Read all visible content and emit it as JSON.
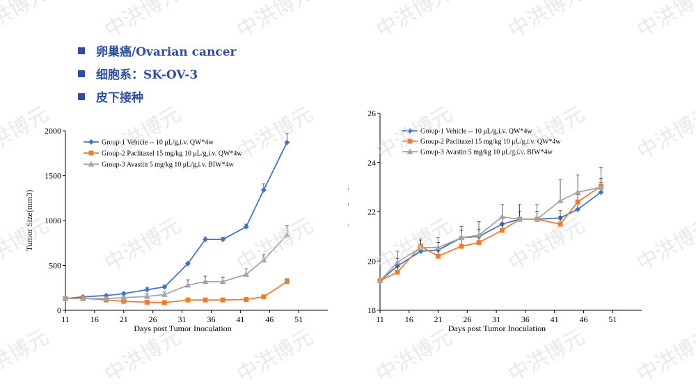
{
  "bullets": [
    "卵巢癌/Ovarian cancer",
    "细胞系：SK-OV-3",
    "皮下接种"
  ],
  "watermark": "中洪博元",
  "colors": {
    "group1": "#4472c4",
    "group2": "#ed7d31",
    "group3": "#a5a5a5",
    "bullet": "#2f4f9a"
  },
  "chart_data": [
    {
      "type": "line",
      "title": "",
      "xlabel": "Days post Tumor Inoculation",
      "ylabel": "Tumor Size(mm3)",
      "xlim": [
        11,
        56
      ],
      "ylim": [
        0,
        2000
      ],
      "xticks": [
        11,
        16,
        21,
        26,
        31,
        36,
        41,
        46,
        51
      ],
      "yticks": [
        0,
        500,
        1000,
        1500,
        2000
      ],
      "legend_position": "top-left",
      "series": [
        {
          "name": "Group-1 Vehicle -- 10 μL/g,i.v. QW*4w",
          "marker": "diamond",
          "x": [
            11,
            14,
            18,
            21,
            25,
            28,
            32,
            35,
            38,
            42,
            45,
            49
          ],
          "y": [
            130,
            150,
            165,
            185,
            230,
            260,
            520,
            790,
            790,
            930,
            1340,
            1870
          ],
          "err": [
            0,
            10,
            10,
            15,
            25,
            20,
            20,
            25,
            20,
            30,
            70,
            100
          ]
        },
        {
          "name": "Group-2 Paclitaxel 15 mg/kg 10 μL/g,i.v. QW*4w",
          "marker": "square",
          "x": [
            11,
            14,
            18,
            21,
            25,
            28,
            32,
            35,
            38,
            42,
            45,
            49
          ],
          "y": [
            130,
            135,
            115,
            100,
            90,
            85,
            115,
            115,
            115,
            120,
            150,
            320
          ],
          "err": [
            0,
            8,
            8,
            8,
            8,
            8,
            10,
            10,
            10,
            10,
            15,
            30
          ]
        },
        {
          "name": "Group-3 Avastin 5 mg/kg 10 μL/g,i.v. BIW*4w",
          "marker": "triangle",
          "x": [
            11,
            14,
            18,
            21,
            25,
            28,
            32,
            35,
            38,
            42,
            45,
            49
          ],
          "y": [
            130,
            130,
            130,
            140,
            155,
            175,
            280,
            320,
            320,
            400,
            560,
            840
          ],
          "err": [
            0,
            10,
            10,
            20,
            30,
            30,
            60,
            60,
            50,
            60,
            60,
            100
          ]
        }
      ]
    },
    {
      "type": "line",
      "title": "",
      "xlabel": "Days post Tumor Inoculation",
      "ylabel": "Body Weight (g)",
      "xlim": [
        11,
        56
      ],
      "ylim": [
        18,
        26
      ],
      "xticks": [
        11,
        16,
        21,
        26,
        31,
        36,
        41,
        46,
        51
      ],
      "yticks": [
        18,
        20,
        22,
        24,
        26
      ],
      "legend_position": "top-left",
      "series": [
        {
          "name": "Group-1 Vehicle -- 10 μL/g,i.v. QW*4w",
          "marker": "diamond",
          "x": [
            11,
            14,
            18,
            21,
            25,
            28,
            32,
            35,
            38,
            42,
            45,
            49
          ],
          "y": [
            19.2,
            19.8,
            20.4,
            20.45,
            20.95,
            21.0,
            21.5,
            21.7,
            21.7,
            21.75,
            22.1,
            22.8
          ],
          "err": [
            0,
            0.3,
            0.3,
            0.3,
            0.3,
            0.3,
            0.3,
            0.3,
            0.3,
            0.3,
            0.3,
            0.4
          ]
        },
        {
          "name": "Group-2 Paclitaxel 15 mg/kg 10 μL/g,i.v. QW*4w",
          "marker": "square",
          "x": [
            11,
            14,
            18,
            21,
            25,
            28,
            32,
            35,
            38,
            42,
            45,
            49
          ],
          "y": [
            19.2,
            19.55,
            20.6,
            20.2,
            20.6,
            20.75,
            21.25,
            21.7,
            21.7,
            21.5,
            22.4,
            23.05
          ],
          "err": [
            0,
            0.3,
            0.3,
            0.3,
            0.3,
            0.3,
            0.3,
            0.3,
            0.3,
            0.3,
            0.3,
            0.3
          ]
        },
        {
          "name": "Group-3 Avastin 5 mg/kg 10 μL/g,i.v. BIW*4w",
          "marker": "triangle",
          "x": [
            11,
            14,
            18,
            21,
            25,
            28,
            32,
            35,
            38,
            42,
            45,
            49
          ],
          "y": [
            19.2,
            19.95,
            20.55,
            20.55,
            20.95,
            21.05,
            21.8,
            21.7,
            21.7,
            22.45,
            22.8,
            23.0
          ],
          "err": [
            0,
            0.45,
            0.3,
            0.4,
            0.45,
            0.55,
            0.5,
            0.6,
            0.6,
            0.85,
            0.7,
            0.8
          ]
        }
      ]
    }
  ]
}
